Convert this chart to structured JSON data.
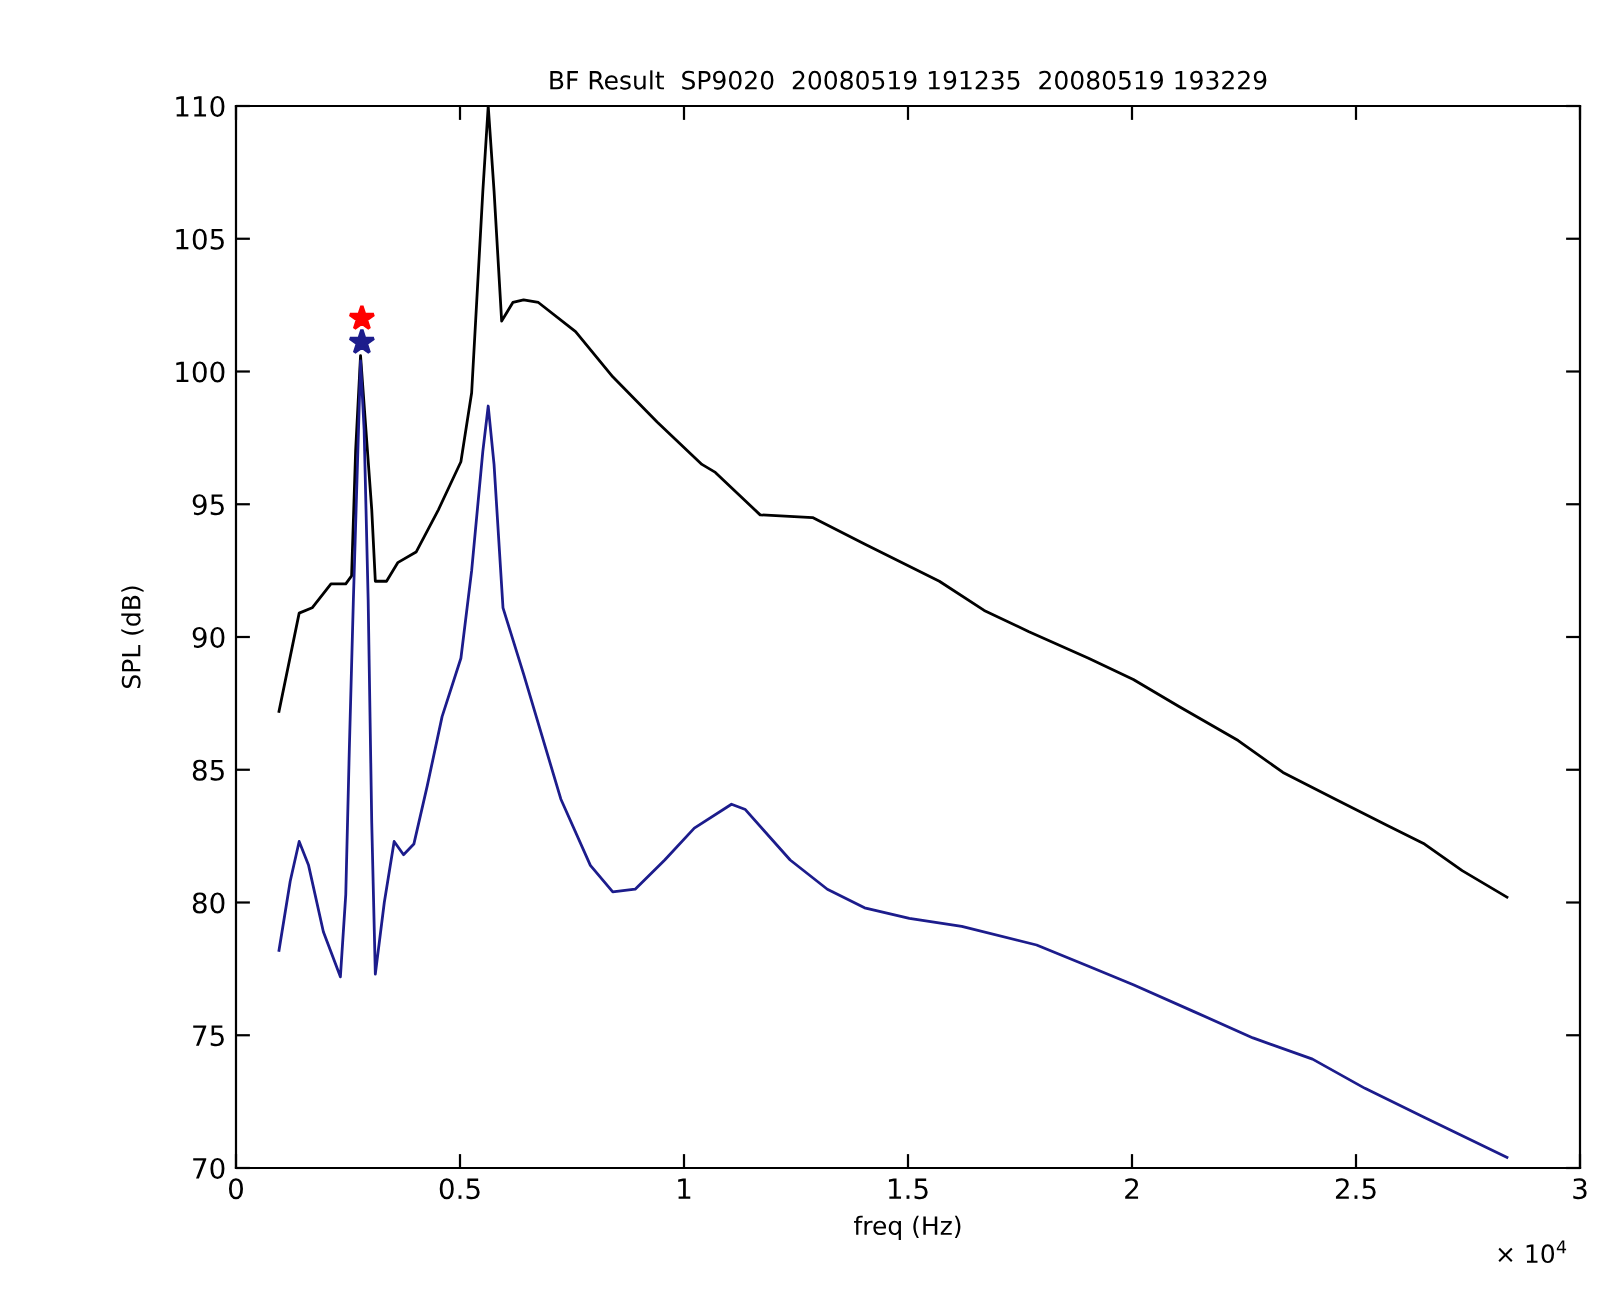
{
  "chart_data": {
    "type": "line",
    "title": "BF Result  SP9020  20080519 191235  20080519 193229",
    "xlabel": "freq (Hz)",
    "ylabel": "SPL (dB)",
    "annotations": [
      "× 10$^{4}$"
    ],
    "xlim": [
      0,
      3
    ],
    "xticks": [
      0,
      0.5,
      1,
      1.5,
      2,
      2.5,
      3
    ],
    "ylim": [
      70,
      110
    ],
    "yticks": [
      70,
      75,
      80,
      85,
      90,
      95,
      100,
      105,
      110
    ],
    "grid": false,
    "legend": false,
    "line_style": "solid",
    "series": [
      {
        "color": "#000000",
        "x": [
          0.096,
          0.141,
          0.17,
          0.212,
          0.245,
          0.258,
          0.267,
          0.278,
          0.29,
          0.303,
          0.311,
          0.336,
          0.361,
          0.402,
          0.452,
          0.502,
          0.526,
          0.551,
          0.563,
          0.576,
          0.593,
          0.618,
          0.642,
          0.675,
          0.758,
          0.841,
          0.94,
          1.04,
          1.07,
          1.17,
          1.287,
          1.403,
          1.57,
          1.67,
          1.77,
          1.903,
          2.003,
          2.103,
          2.237,
          2.337,
          2.453,
          2.57,
          2.653,
          2.737,
          2.837
        ],
        "values": [
          87.2,
          90.9,
          91.1,
          92.0,
          92.0,
          92.3,
          97.0,
          100.6,
          97.8,
          94.8,
          92.1,
          92.1,
          92.8,
          93.2,
          94.8,
          96.6,
          99.2,
          106.8,
          110,
          106.8,
          101.9,
          102.6,
          102.7,
          102.6,
          101.5,
          99.8,
          98.1,
          96.5,
          96.2,
          94.6,
          94.5,
          93.5,
          92.1,
          91.0,
          90.2,
          89.2,
          88.4,
          87.4,
          86.1,
          84.9,
          83.9,
          82.9,
          82.2,
          81.2,
          80.2
        ]
      },
      {
        "color": "#1c1c8c",
        "x": [
          0.096,
          0.121,
          0.141,
          0.162,
          0.195,
          0.233,
          0.245,
          0.253,
          0.262,
          0.272,
          0.278,
          0.286,
          0.295,
          0.303,
          0.311,
          0.331,
          0.353,
          0.374,
          0.397,
          0.427,
          0.46,
          0.502,
          0.526,
          0.551,
          0.563,
          0.576,
          0.596,
          0.642,
          0.725,
          0.791,
          0.841,
          0.891,
          0.957,
          1.023,
          1.106,
          1.137,
          1.237,
          1.32,
          1.403,
          1.503,
          1.62,
          1.787,
          1.903,
          2.003,
          2.137,
          2.27,
          2.403,
          2.52,
          2.653,
          2.837
        ],
        "values": [
          78.2,
          80.8,
          82.3,
          81.4,
          78.9,
          77.2,
          80.3,
          85.8,
          91.4,
          97.0,
          100.4,
          97.8,
          91.4,
          83.0,
          77.3,
          80.0,
          82.3,
          81.8,
          82.2,
          84.4,
          87.0,
          89.2,
          92.5,
          97.0,
          98.7,
          96.5,
          91.1,
          88.6,
          83.9,
          81.4,
          80.4,
          80.5,
          81.6,
          82.8,
          83.7,
          83.5,
          81.6,
          80.5,
          79.8,
          79.4,
          79.1,
          78.4,
          77.6,
          76.9,
          75.9,
          74.9,
          74.1,
          73.0,
          71.9,
          70.4
        ]
      },
      {
        "type": "scatter",
        "color": "#ff0000",
        "marker": "star",
        "x": [
          0.281
        ],
        "values": [
          102.0
        ]
      },
      {
        "type": "scatter",
        "color": "#1c1c8c",
        "marker": "star",
        "x": [
          0.281
        ],
        "values": [
          101.1
        ]
      }
    ]
  }
}
